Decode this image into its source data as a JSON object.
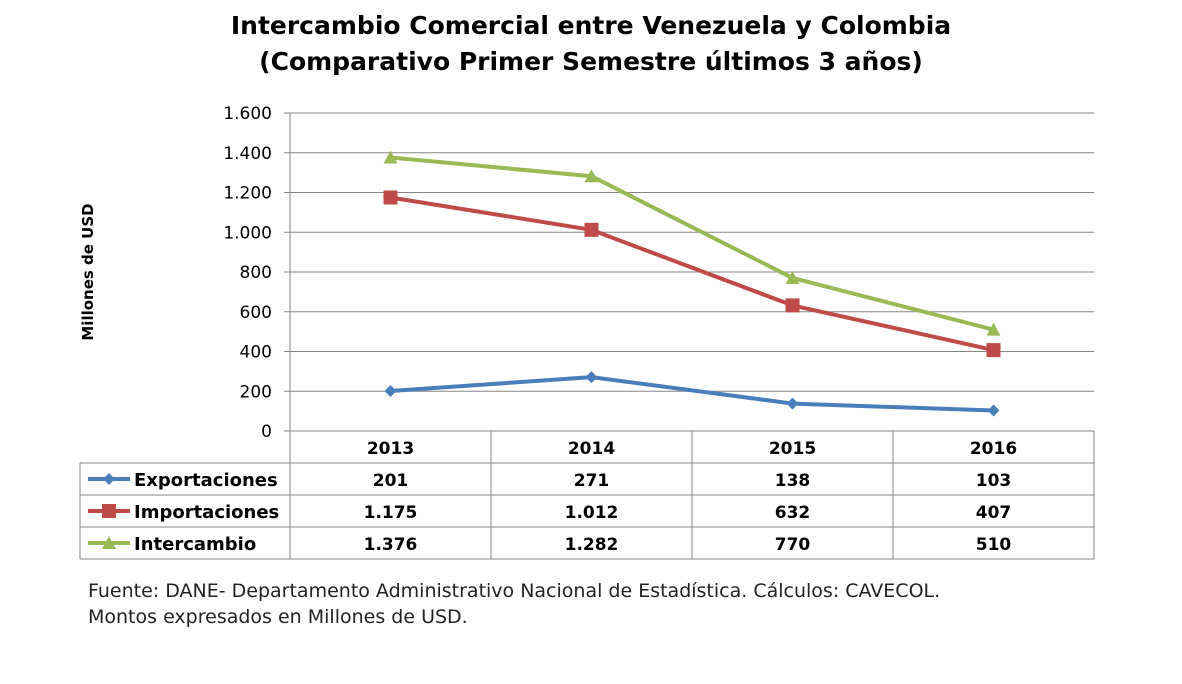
{
  "title_line1": "Intercambio Comercial entre Venezuela y Colombia",
  "title_line2": "(Comparativo Primer Semestre últimos 3 años)",
  "source_line1": "Fuente: DANE- Departamento Administrativo Nacional de Estadística. Cálculos: CAVECOL.",
  "source_line2": "Montos expresados en Millones de USD.",
  "chart_data": {
    "type": "line",
    "ylabel": "Millones de USD",
    "ylim": [
      0,
      1600
    ],
    "yticks": [
      0,
      200,
      400,
      600,
      800,
      1000,
      1200,
      1400,
      1600
    ],
    "ytick_labels": [
      "0",
      "200",
      "400",
      "600",
      "800",
      "1.000",
      "1.200",
      "1.400",
      "1.600"
    ],
    "grid": true,
    "legend": "data-table",
    "categories": [
      "2013",
      "2014",
      "2015",
      "2016"
    ],
    "series": [
      {
        "name": "Exportaciones",
        "values": [
          201,
          271,
          138,
          103
        ],
        "labels": [
          "201",
          "271",
          "138",
          "103"
        ],
        "color": "#4a7ebb",
        "marker": "diamond"
      },
      {
        "name": "Importaciones",
        "values": [
          1175,
          1012,
          632,
          407
        ],
        "labels": [
          "1.175",
          "1.012",
          "632",
          "407"
        ],
        "color": "#be4b48",
        "marker": "square"
      },
      {
        "name": "Intercambio",
        "values": [
          1376,
          1282,
          770,
          510
        ],
        "labels": [
          "1.376",
          "1.282",
          "770",
          "510"
        ],
        "color": "#98b954",
        "marker": "triangle"
      }
    ]
  }
}
